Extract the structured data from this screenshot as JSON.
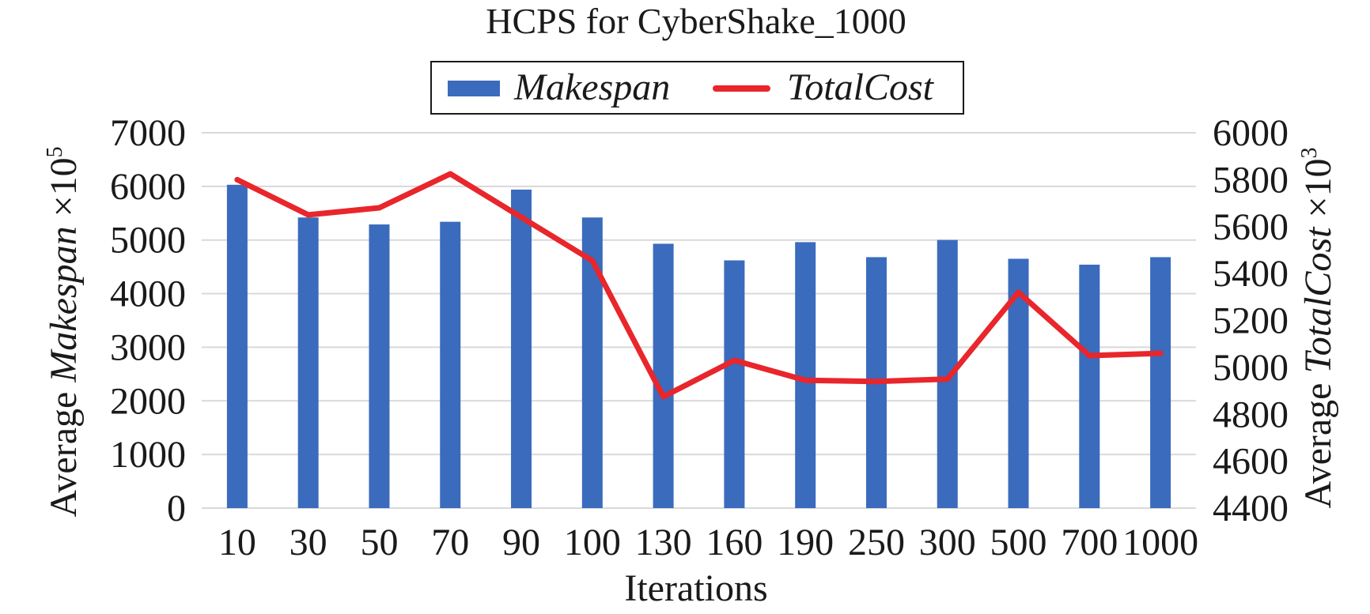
{
  "chart_data": {
    "type": "bar",
    "title": "HCPS for CyberShake_1000",
    "xlabel": "Iterations",
    "ylabel_left": {
      "prefix": "Average ",
      "italic": "Makespan",
      "suffix": " ×10",
      "exponent": "5"
    },
    "ylabel_right": {
      "prefix": "Average ",
      "italic": "TotalCost",
      "suffix": " ×10",
      "exponent": "3"
    },
    "categories": [
      "10",
      "30",
      "50",
      "70",
      "90",
      "100",
      "130",
      "160",
      "190",
      "250",
      "300",
      "500",
      "700",
      "1000"
    ],
    "series": [
      {
        "name": "Makespan",
        "kind": "bar",
        "axis": "left",
        "color": "#3a6bbd",
        "values": [
          6030,
          5420,
          5290,
          5340,
          5940,
          5420,
          4930,
          4620,
          4960,
          4680,
          5000,
          4650,
          4540,
          4680
        ]
      },
      {
        "name": "TotalCost",
        "kind": "line",
        "axis": "right",
        "color": "#e8262b",
        "values": [
          5800,
          5650,
          5680,
          5825,
          5640,
          5455,
          4875,
          5030,
          4945,
          4940,
          4950,
          5320,
          5050,
          5060
        ]
      }
    ],
    "ylim_left": [
      0,
      7000
    ],
    "yticks_left": [
      0,
      1000,
      2000,
      3000,
      4000,
      5000,
      6000,
      7000
    ],
    "ylim_right": [
      4400,
      6000
    ],
    "yticks_right": [
      4400,
      4600,
      4800,
      5000,
      5200,
      5400,
      5600,
      5800,
      6000
    ],
    "grid": true,
    "legend_position": "top-center"
  }
}
